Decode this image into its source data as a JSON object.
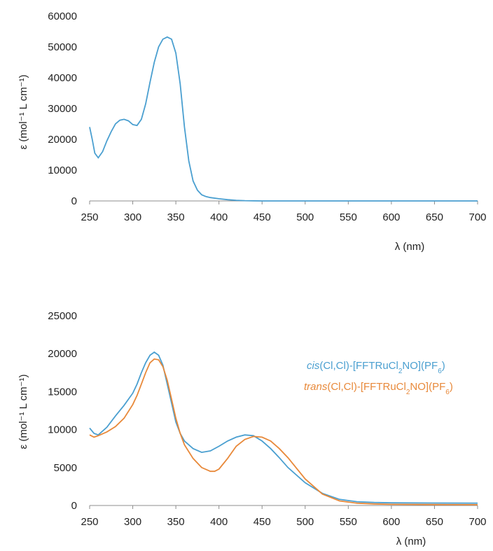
{
  "chart_data": [
    {
      "type": "line",
      "xlabel": "λ (nm)",
      "ylabel": "ε (mol⁻¹ L cm⁻¹)",
      "xlim": [
        250,
        700
      ],
      "ylim": [
        0,
        60000
      ],
      "xticks": [
        250,
        300,
        350,
        400,
        450,
        500,
        550,
        600,
        650,
        700
      ],
      "yticks": [
        0,
        10000,
        20000,
        30000,
        40000,
        50000,
        60000
      ],
      "grid": false,
      "series": [
        {
          "color": "#4a9fd0",
          "x": [
            250,
            253,
            256,
            260,
            265,
            270,
            275,
            280,
            285,
            290,
            295,
            300,
            305,
            310,
            315,
            320,
            325,
            330,
            335,
            340,
            345,
            350,
            355,
            360,
            365,
            370,
            375,
            380,
            385,
            390,
            400,
            410,
            420,
            430,
            440,
            450,
            500,
            600,
            700
          ],
          "y": [
            24000,
            20000,
            15500,
            14000,
            16000,
            19500,
            22500,
            25000,
            26200,
            26500,
            26000,
            24800,
            24500,
            26500,
            31500,
            38500,
            45000,
            50000,
            52500,
            53200,
            52500,
            48000,
            38000,
            24000,
            13000,
            6500,
            3500,
            2000,
            1400,
            1100,
            700,
            400,
            200,
            100,
            50,
            0,
            0,
            0,
            0
          ]
        }
      ]
    },
    {
      "type": "line",
      "xlabel": "λ (nm)",
      "ylabel": "ε (mol⁻¹ L cm⁻¹)",
      "xlim": [
        250,
        700
      ],
      "ylim": [
        0,
        25000
      ],
      "xticks": [
        250,
        300,
        350,
        400,
        450,
        500,
        550,
        600,
        650,
        700
      ],
      "yticks": [
        0,
        5000,
        10000,
        15000,
        20000,
        25000
      ],
      "grid": false,
      "legend": "right",
      "series": [
        {
          "name_prefix": "cis",
          "name_main": "(Cl,Cl)-[FFTRuCl",
          "name_sub1": "2",
          "name_mid": "NO](PF",
          "name_sub2": "6",
          "name_end": ")",
          "color": "#4a9fd0",
          "x": [
            250,
            255,
            260,
            270,
            280,
            290,
            300,
            305,
            310,
            315,
            320,
            325,
            330,
            335,
            340,
            345,
            350,
            355,
            360,
            370,
            380,
            390,
            400,
            410,
            420,
            430,
            440,
            450,
            460,
            470,
            480,
            500,
            520,
            540,
            560,
            580,
            600,
            650,
            700
          ],
          "y": [
            10200,
            9500,
            9300,
            10300,
            11800,
            13200,
            14800,
            16000,
            17500,
            18800,
            19800,
            20200,
            19800,
            18500,
            16000,
            13500,
            11000,
            9500,
            8500,
            7500,
            7000,
            7200,
            7800,
            8500,
            9000,
            9300,
            9200,
            8500,
            7500,
            6300,
            5000,
            3000,
            1600,
            800,
            500,
            400,
            350,
            320,
            300
          ]
        },
        {
          "name_prefix": "trans",
          "name_main": "(Cl,Cl)-[FFTRuCl",
          "name_sub1": "2",
          "name_mid": "NO](PF",
          "name_sub2": "6",
          "name_end": ")",
          "color": "#e8893a",
          "x": [
            250,
            255,
            260,
            270,
            280,
            290,
            300,
            305,
            310,
            315,
            320,
            325,
            330,
            335,
            340,
            345,
            350,
            355,
            360,
            370,
            380,
            390,
            395,
            400,
            410,
            420,
            430,
            440,
            450,
            460,
            470,
            480,
            500,
            520,
            540,
            560,
            580,
            600,
            650,
            700
          ],
          "y": [
            9300,
            9000,
            9200,
            9700,
            10400,
            11500,
            13300,
            14500,
            16000,
            17500,
            18800,
            19300,
            19200,
            18300,
            16500,
            14000,
            11500,
            9500,
            8000,
            6200,
            5000,
            4500,
            4500,
            4800,
            6200,
            7800,
            8700,
            9100,
            9000,
            8500,
            7500,
            6300,
            3500,
            1500,
            600,
            300,
            200,
            150,
            120,
            100
          ]
        }
      ]
    }
  ]
}
